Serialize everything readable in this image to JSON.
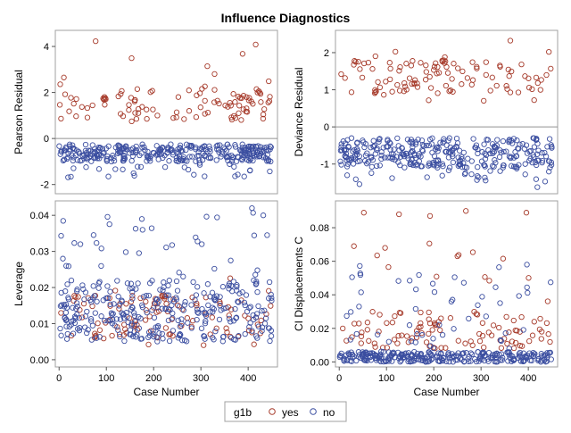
{
  "chart_data": {
    "title": "Influence Diagnostics",
    "legend": {
      "title": "g1b",
      "position": "bottom-center",
      "entries": [
        {
          "label": "yes",
          "color": "#a63a2a"
        },
        {
          "label": "no",
          "color": "#3b4ea0"
        }
      ]
    },
    "panels": [
      {
        "id": "pearson",
        "type": "scatter",
        "ylabel": "Pearson Residual",
        "xlabel": "",
        "xlim": [
          -8,
          462
        ],
        "ylim": [
          -2.4,
          4.7
        ],
        "yticks": [
          -2,
          0,
          2,
          4
        ],
        "xticks": [],
        "reference_line": 0,
        "series": [
          {
            "name": "yes",
            "n": 110,
            "y_range": [
              0.6,
              4.35
            ],
            "y_typical": [
              0.8,
              2.2
            ]
          },
          {
            "name": "no",
            "n": 340,
            "y_range": [
              -1.7,
              -0.2
            ],
            "y_typical": [
              -1.0,
              -0.25
            ]
          }
        ]
      },
      {
        "id": "deviance",
        "type": "scatter",
        "ylabel": "Deviance Residual",
        "xlabel": "",
        "xlim": [
          -8,
          462
        ],
        "ylim": [
          -1.8,
          2.6
        ],
        "yticks": [
          -1,
          0,
          1,
          2
        ],
        "xticks": [],
        "reference_line": 0,
        "series": [
          {
            "name": "yes",
            "n": 110,
            "y_range": [
              0.7,
              2.45
            ],
            "y_typical": [
              0.9,
              1.8
            ]
          },
          {
            "name": "no",
            "n": 340,
            "y_range": [
              -1.7,
              -0.25
            ],
            "y_typical": [
              -1.1,
              -0.3
            ]
          }
        ]
      },
      {
        "id": "leverage",
        "type": "scatter",
        "ylabel": "Leverage",
        "xlabel": "Case Number",
        "xlim": [
          -8,
          462
        ],
        "ylim": [
          -0.002,
          0.044
        ],
        "yticks": [
          0.0,
          0.01,
          0.02,
          0.03,
          0.04
        ],
        "ytick_labels": [
          "0.00",
          "0.01",
          "0.02",
          "0.03",
          "0.04"
        ],
        "xticks": [
          0,
          100,
          200,
          300,
          400
        ],
        "series": [
          {
            "name": "yes",
            "n": 110,
            "y_range": [
              0.004,
              0.024
            ],
            "y_typical": [
              0.006,
              0.018
            ]
          },
          {
            "name": "no",
            "n": 340,
            "y_range": [
              0.004,
              0.042
            ],
            "y_typical": [
              0.005,
              0.022
            ]
          }
        ],
        "notable_points": [
          {
            "series": "no",
            "x": 408,
            "y": 0.042
          },
          {
            "series": "no",
            "x": 432,
            "y": 0.04
          },
          {
            "series": "no",
            "x": 45,
            "y": 0.032
          },
          {
            "series": "no",
            "x": 302,
            "y": 0.032
          },
          {
            "series": "no",
            "x": 8,
            "y": 0.028
          },
          {
            "series": "no",
            "x": 15,
            "y": 0.026
          }
        ]
      },
      {
        "id": "ci",
        "type": "scatter",
        "ylabel": "CI Displacements C",
        "xlabel": "Case Number",
        "xlim": [
          -8,
          462
        ],
        "ylim": [
          -0.003,
          0.096
        ],
        "yticks": [
          0.0,
          0.02,
          0.04,
          0.06,
          0.08
        ],
        "ytick_labels": [
          "0.00",
          "0.02",
          "0.04",
          "0.06",
          "0.08"
        ],
        "xticks": [
          0,
          100,
          200,
          300,
          400
        ],
        "series": [
          {
            "name": "yes",
            "n": 110,
            "y_range": [
              0.005,
              0.09
            ],
            "y_typical": [
              0.008,
              0.03
            ]
          },
          {
            "name": "no",
            "n": 340,
            "y_range": [
              0.0,
              0.058
            ],
            "y_typical": [
              0.0,
              0.006
            ]
          }
        ],
        "notable_points": [
          {
            "series": "yes",
            "x": 52,
            "y": 0.089
          },
          {
            "series": "yes",
            "x": 268,
            "y": 0.09
          },
          {
            "series": "yes",
            "x": 396,
            "y": 0.089
          },
          {
            "series": "yes",
            "x": 192,
            "y": 0.087
          },
          {
            "series": "yes",
            "x": 31,
            "y": 0.069
          },
          {
            "series": "yes",
            "x": 97,
            "y": 0.068
          },
          {
            "series": "yes",
            "x": 250,
            "y": 0.063
          },
          {
            "series": "no",
            "x": 397,
            "y": 0.058
          }
        ]
      }
    ]
  }
}
